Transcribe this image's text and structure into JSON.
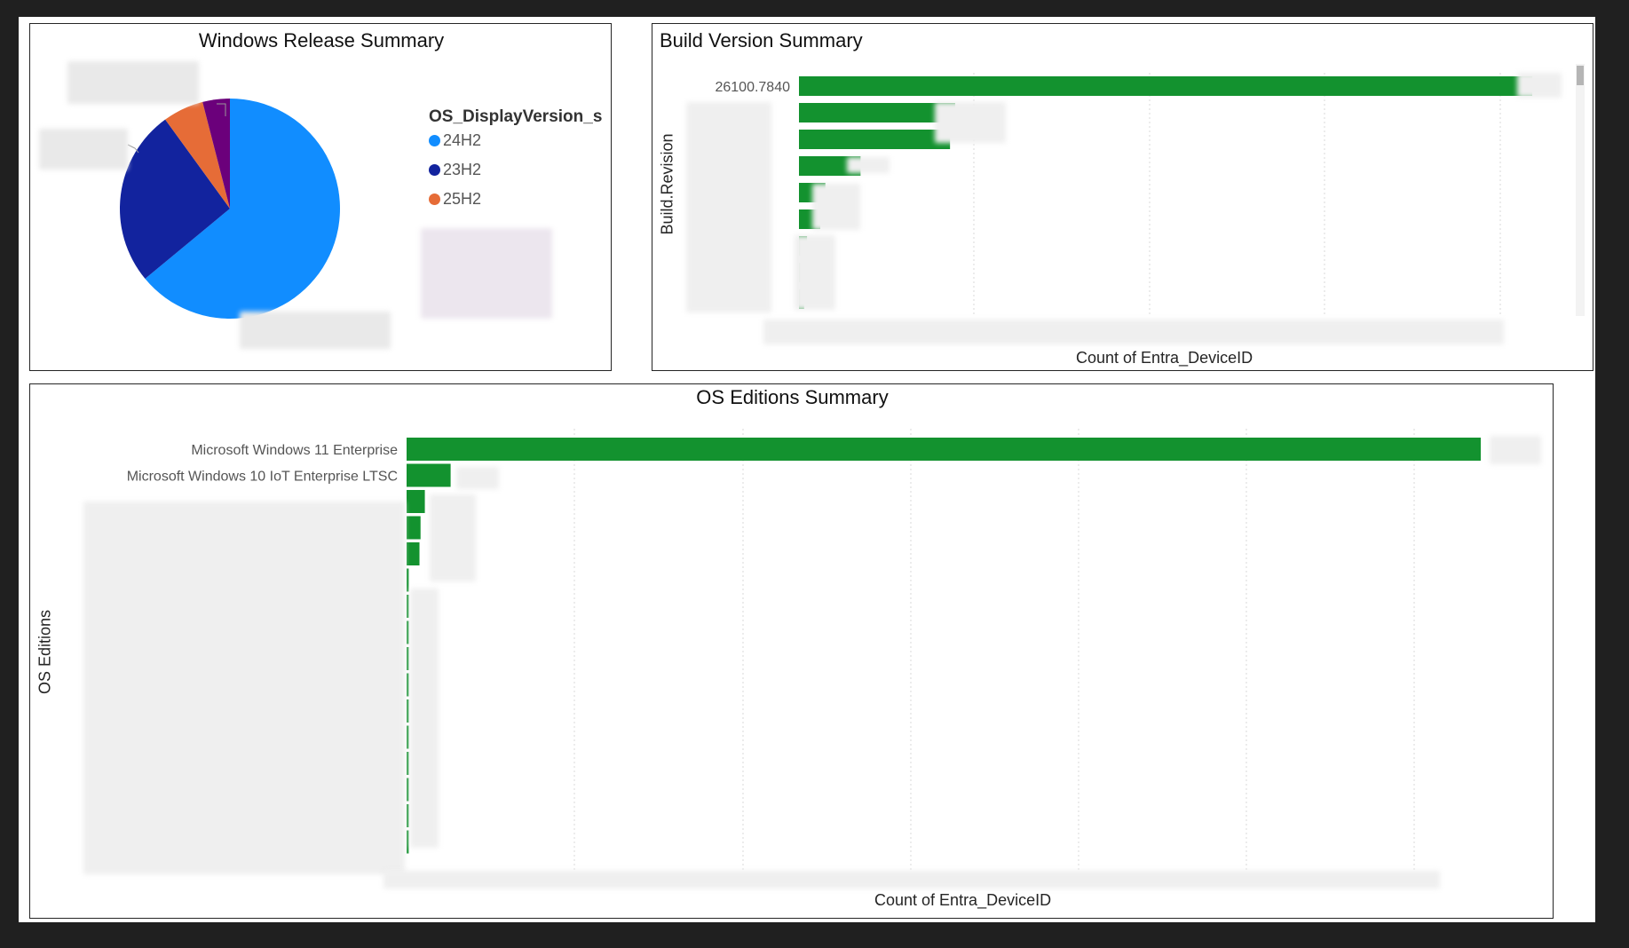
{
  "colors": {
    "bar": "#13922f",
    "gridline": "#d9d9d9",
    "pie_24H2": "#118dff",
    "pie_23H2": "#12239e",
    "pie_25H2": "#e66c37",
    "pie_other": "#6b007b"
  },
  "pie_panel": {
    "title": "Windows Release Summary",
    "legend_title": "OS_DisplayVersion_s"
  },
  "build_panel": {
    "title": "Build Version Summary",
    "y_axis_title": "Build.Revision",
    "x_axis_title": "Count of Entra_DeviceID"
  },
  "edition_panel": {
    "title": "OS Editions Summary",
    "y_axis_title": "OS Editions",
    "x_axis_title": "Count of Entra_DeviceID"
  },
  "chart_data": [
    {
      "type": "pie",
      "title": "Windows Release Summary",
      "legend_title": "OS_DisplayVersion_s",
      "legend_position": "right",
      "slices": [
        {
          "label": "24H2",
          "value": 64,
          "color": "#118dff"
        },
        {
          "label": "23H2",
          "value": 26,
          "color": "#12239e"
        },
        {
          "label": "25H2",
          "value": 6,
          "color": "#e66c37"
        },
        {
          "label": "",
          "value": 4,
          "color": "#6b007b"
        }
      ]
    },
    {
      "type": "bar",
      "orientation": "horizontal",
      "title": "Build Version Summary",
      "ylabel": "Build.Revision",
      "xlabel": "Count of Entra_DeviceID",
      "grid": true,
      "categories": [
        "26100.7840",
        "",
        "",
        "",
        "",
        "",
        "",
        "",
        ""
      ],
      "values": [
        100,
        21.3,
        20.6,
        8.4,
        3.6,
        2.9,
        1.1,
        0.7,
        0.7
      ],
      "xlim": [
        0,
        100
      ]
    },
    {
      "type": "bar",
      "orientation": "horizontal",
      "title": "OS Editions Summary",
      "ylabel": "OS Editions",
      "xlabel": "Count of Entra_DeviceID",
      "grid": true,
      "categories": [
        "Microsoft Windows 11 Enterprise",
        "Microsoft Windows 10 IoT Enterprise LTSC",
        "",
        "",
        "",
        "",
        "",
        "",
        "",
        "",
        "",
        "",
        "",
        "",
        "",
        ""
      ],
      "values": [
        100,
        4.1,
        1.7,
        1.3,
        1.2,
        0.2,
        0.2,
        0.2,
        0.2,
        0.2,
        0.2,
        0.2,
        0.2,
        0.2,
        0.2,
        0.2
      ],
      "xlim": [
        0,
        100
      ]
    }
  ]
}
